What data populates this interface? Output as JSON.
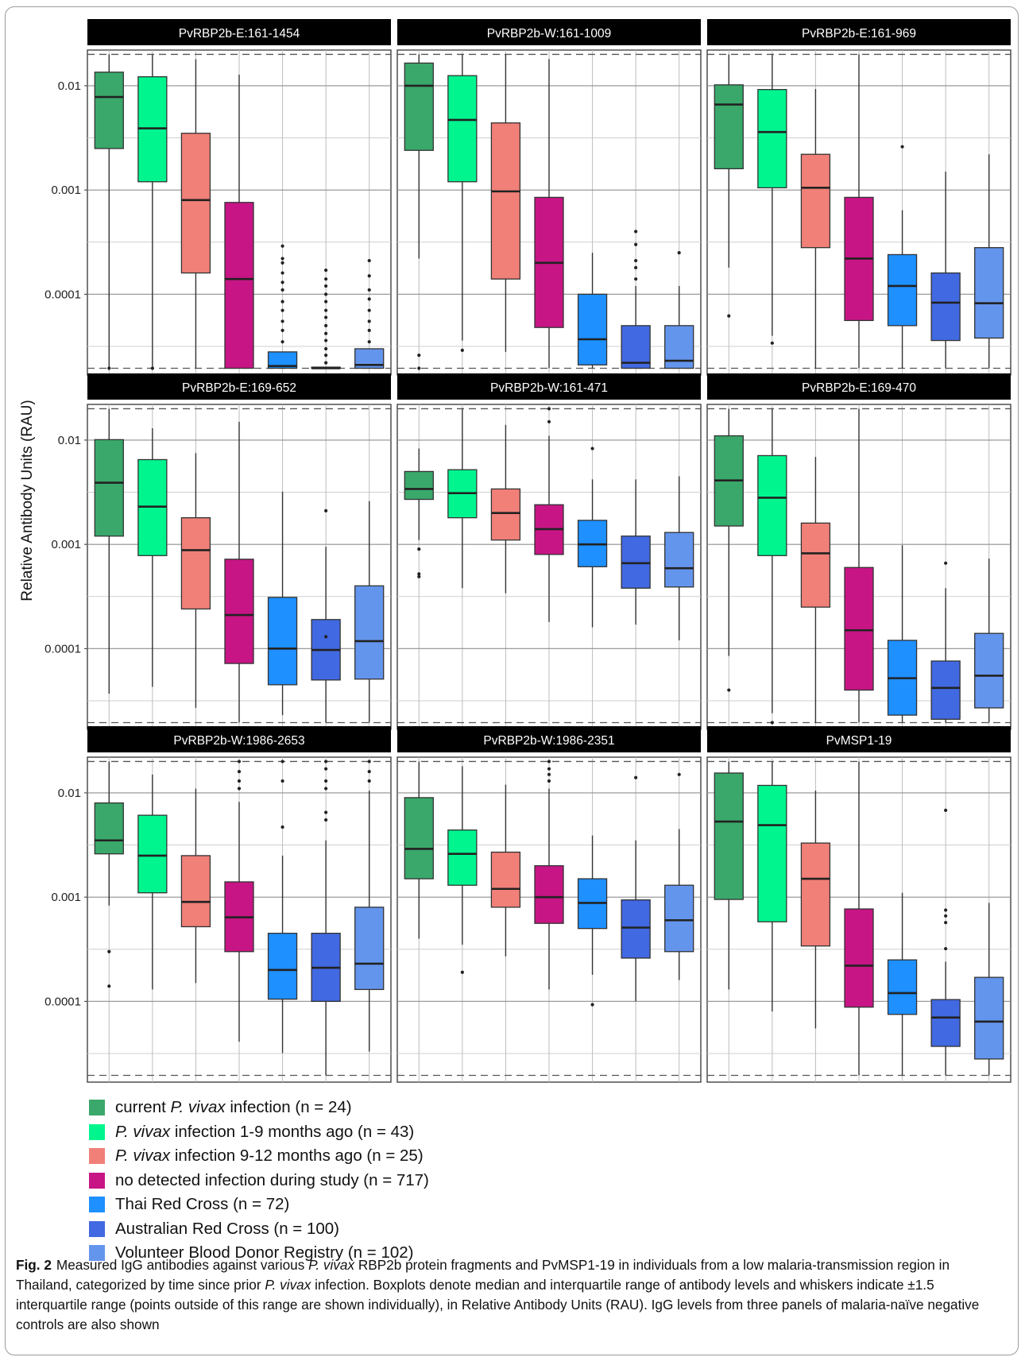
{
  "chart_data": {
    "type": "boxplot",
    "ylabel": "Relative Antibody Units (RAU)",
    "yscale": "log",
    "ylim": [
      1.68e-05,
      0.022
    ],
    "yticks": [
      0.0001,
      0.001,
      0.01
    ],
    "ytick_labels": [
      "0.0001",
      "0.001",
      "0.01"
    ],
    "ref_lines": [
      1.95e-05,
      0.02
    ],
    "groups": [
      {
        "prefix": "current ",
        "italic": "P. vivax",
        "suffix": " infection (n = 24)",
        "color": "#3aa86b"
      },
      {
        "prefix": "",
        "italic": "P. vivax",
        "suffix": " infection 1-9 months ago (n = 43)",
        "color": "#00f58f"
      },
      {
        "prefix": "",
        "italic": "P. vivax",
        "suffix": " infection 9-12 months ago (n = 25)",
        "color": "#f08078"
      },
      {
        "prefix": "no detected infection during study (n = 717)",
        "italic": "",
        "suffix": "",
        "color": "#c71585"
      },
      {
        "prefix": "Thai Red Cross (n = 72)",
        "italic": "",
        "suffix": "",
        "color": "#1e90ff"
      },
      {
        "prefix": "Australian Red Cross (n = 100)",
        "italic": "",
        "suffix": "",
        "color": "#4169e1"
      },
      {
        "prefix": "Volunteer Blood Donor Registry (n = 102)",
        "italic": "",
        "suffix": "",
        "color": "#6495ed"
      }
    ],
    "panels": [
      {
        "title": "PvRBP2b-E:161-1454",
        "boxes": [
          {
            "low": 1.95e-05,
            "q1": 0.0025,
            "median": 0.0078,
            "q3": 0.0135,
            "high": 0.02,
            "outliers": [
              1.95e-05
            ]
          },
          {
            "low": 1.95e-05,
            "q1": 0.0012,
            "median": 0.0039,
            "q3": 0.0122,
            "high": 0.02,
            "outliers": [
              1.95e-05
            ]
          },
          {
            "low": 1.95e-05,
            "q1": 0.00016,
            "median": 0.0008,
            "q3": 0.0035,
            "high": 0.018,
            "outliers": []
          },
          {
            "low": 1.95e-05,
            "q1": 1.95e-05,
            "median": 0.00014,
            "q3": 0.00076,
            "high": 0.0128,
            "outliers": []
          },
          {
            "low": 1.95e-05,
            "q1": 1.95e-05,
            "median": 2.05e-05,
            "q3": 2.8e-05,
            "high": 2.8e-05,
            "outliers": [
              3.5e-05,
              4.5e-05,
              5.5e-05,
              7e-05,
              8.5e-05,
              0.00011,
              0.00013,
              0.00016,
              0.0002,
              0.00022,
              0.00029
            ]
          },
          {
            "low": 1.95e-05,
            "q1": 1.95e-05,
            "median": 1.95e-05,
            "q3": 2e-05,
            "high": 2e-05,
            "outliers": [
              2.2e-05,
              2.6e-05,
              3e-05,
              3.6e-05,
              4.2e-05,
              5e-05,
              6e-05,
              7e-05,
              8.5e-05,
              0.0001,
              0.00012,
              0.00014,
              0.00017
            ]
          },
          {
            "low": 1.95e-05,
            "q1": 1.95e-05,
            "median": 2.1e-05,
            "q3": 3e-05,
            "high": 3e-05,
            "outliers": [
              3.5e-05,
              4.5e-05,
              5.5e-05,
              7e-05,
              9e-05,
              0.00011,
              0.00015,
              0.00021
            ]
          }
        ]
      },
      {
        "title": "PvRBP2b-W:161-1009",
        "boxes": [
          {
            "low": 0.00022,
            "q1": 0.0024,
            "median": 0.01,
            "q3": 0.0165,
            "high": 0.02,
            "outliers": [
              2.6e-05,
              1.95e-05
            ]
          },
          {
            "low": 3.6e-05,
            "q1": 0.0012,
            "median": 0.0047,
            "q3": 0.0125,
            "high": 0.02,
            "outliers": [
              2.9e-05
            ]
          },
          {
            "low": 2.8e-05,
            "q1": 0.00014,
            "median": 0.00097,
            "q3": 0.0044,
            "high": 0.02,
            "outliers": []
          },
          {
            "low": 1.95e-05,
            "q1": 4.8e-05,
            "median": 0.0002,
            "q3": 0.00085,
            "high": 0.018,
            "outliers": []
          },
          {
            "low": 1.95e-05,
            "q1": 2.1e-05,
            "median": 3.7e-05,
            "q3": 0.0001,
            "high": 0.00025,
            "outliers": []
          },
          {
            "low": 1.95e-05,
            "q1": 1.95e-05,
            "median": 2.2e-05,
            "q3": 5e-05,
            "high": 0.00012,
            "outliers": [
              0.00014,
              0.00018,
              0.00021,
              0.0003,
              0.0004
            ]
          },
          {
            "low": 1.95e-05,
            "q1": 1.95e-05,
            "median": 2.3e-05,
            "q3": 5e-05,
            "high": 0.00012,
            "outliers": [
              0.00025
            ]
          }
        ]
      },
      {
        "title": "PvRBP2b-E:161-969",
        "boxes": [
          {
            "low": 0.00018,
            "q1": 0.0016,
            "median": 0.0066,
            "q3": 0.0102,
            "high": 0.02,
            "outliers": [
              6.2e-05
            ]
          },
          {
            "low": 4e-05,
            "q1": 0.00105,
            "median": 0.0036,
            "q3": 0.0092,
            "high": 0.02,
            "outliers": [
              3.4e-05
            ]
          },
          {
            "low": 1.95e-05,
            "q1": 0.00028,
            "median": 0.00105,
            "q3": 0.0022,
            "high": 0.0093,
            "outliers": []
          },
          {
            "low": 1.95e-05,
            "q1": 5.6e-05,
            "median": 0.00022,
            "q3": 0.00085,
            "high": 0.02,
            "outliers": []
          },
          {
            "low": 1.95e-05,
            "q1": 5e-05,
            "median": 0.00012,
            "q3": 0.00024,
            "high": 0.00064,
            "outliers": [
              0.0026
            ]
          },
          {
            "low": 1.95e-05,
            "q1": 3.6e-05,
            "median": 8.3e-05,
            "q3": 0.00016,
            "high": 0.0015,
            "outliers": []
          },
          {
            "low": 1.95e-05,
            "q1": 3.8e-05,
            "median": 8.2e-05,
            "q3": 0.00028,
            "high": 0.0022,
            "outliers": []
          }
        ]
      },
      {
        "title": "PvRBP2b-E:169-652",
        "boxes": [
          {
            "low": 3.7e-05,
            "q1": 0.0012,
            "median": 0.0039,
            "q3": 0.0101,
            "high": 0.02,
            "outliers": []
          },
          {
            "low": 4.3e-05,
            "q1": 0.00078,
            "median": 0.0023,
            "q3": 0.0065,
            "high": 0.013,
            "outliers": []
          },
          {
            "low": 2.7e-05,
            "q1": 0.00024,
            "median": 0.00088,
            "q3": 0.0018,
            "high": 0.0075,
            "outliers": []
          },
          {
            "low": 1.95e-05,
            "q1": 7.2e-05,
            "median": 0.00021,
            "q3": 0.00072,
            "high": 0.015,
            "outliers": []
          },
          {
            "low": 2.3e-05,
            "q1": 4.5e-05,
            "median": 0.0001,
            "q3": 0.00031,
            "high": 0.0032,
            "outliers": []
          },
          {
            "low": 1.95e-05,
            "q1": 5e-05,
            "median": 9.7e-05,
            "q3": 0.00019,
            "high": 0.00095,
            "outliers": [
              0.00013,
              0.0021
            ]
          },
          {
            "low": 1.95e-05,
            "q1": 5.1e-05,
            "median": 0.000118,
            "q3": 0.0004,
            "high": 0.0026,
            "outliers": []
          }
        ]
      },
      {
        "title": "PvRBP2b-W:161-471",
        "boxes": [
          {
            "low": 0.0011,
            "q1": 0.0027,
            "median": 0.0034,
            "q3": 0.005,
            "high": 0.0083,
            "outliers": [
              0.0009,
              0.00052,
              0.00049
            ]
          },
          {
            "low": 0.00038,
            "q1": 0.0018,
            "median": 0.0031,
            "q3": 0.0052,
            "high": 0.02,
            "outliers": []
          },
          {
            "low": 0.00034,
            "q1": 0.0011,
            "median": 0.002,
            "q3": 0.0034,
            "high": 0.014,
            "outliers": []
          },
          {
            "low": 0.00018,
            "q1": 0.0008,
            "median": 0.0014,
            "q3": 0.0024,
            "high": 0.011,
            "outliers": [
              0.015,
              0.02
            ]
          },
          {
            "low": 0.00016,
            "q1": 0.00061,
            "median": 0.001,
            "q3": 0.0017,
            "high": 0.0042,
            "outliers": [
              0.0083
            ]
          },
          {
            "low": 0.00017,
            "q1": 0.00038,
            "median": 0.00066,
            "q3": 0.0012,
            "high": 0.0042,
            "outliers": []
          },
          {
            "low": 0.00012,
            "q1": 0.00039,
            "median": 0.00059,
            "q3": 0.0013,
            "high": 0.0045,
            "outliers": []
          }
        ]
      },
      {
        "title": "PvRBP2b-E:169-470",
        "boxes": [
          {
            "low": 8.5e-05,
            "q1": 0.0015,
            "median": 0.0041,
            "q3": 0.011,
            "high": 0.02,
            "outliers": [
              4e-05
            ]
          },
          {
            "low": 2.4e-05,
            "q1": 0.00078,
            "median": 0.0028,
            "q3": 0.0071,
            "high": 0.02,
            "outliers": [
              1.95e-05
            ]
          },
          {
            "low": 1.95e-05,
            "q1": 0.00025,
            "median": 0.00082,
            "q3": 0.0016,
            "high": 0.0069,
            "outliers": []
          },
          {
            "low": 1.95e-05,
            "q1": 4e-05,
            "median": 0.00015,
            "q3": 0.0006,
            "high": 0.02,
            "outliers": []
          },
          {
            "low": 1.95e-05,
            "q1": 2.3e-05,
            "median": 5.2e-05,
            "q3": 0.00012,
            "high": 0.00098,
            "outliers": []
          },
          {
            "low": 1.95e-05,
            "q1": 2.1e-05,
            "median": 4.2e-05,
            "q3": 7.6e-05,
            "high": 0.00038,
            "outliers": [
              0.00066
            ]
          },
          {
            "low": 1.95e-05,
            "q1": 2.7e-05,
            "median": 5.5e-05,
            "q3": 0.00014,
            "high": 0.00073,
            "outliers": []
          }
        ]
      },
      {
        "title": "PvRBP2b-W:1986-2653",
        "boxes": [
          {
            "low": 0.00083,
            "q1": 0.0026,
            "median": 0.0035,
            "q3": 0.008,
            "high": 0.02,
            "outliers": [
              0.0003,
              0.00014
            ]
          },
          {
            "low": 0.00013,
            "q1": 0.0011,
            "median": 0.0025,
            "q3": 0.0061,
            "high": 0.015,
            "outliers": []
          },
          {
            "low": 0.00015,
            "q1": 0.00052,
            "median": 0.0009,
            "q3": 0.0025,
            "high": 0.011,
            "outliers": []
          },
          {
            "low": 4.1e-05,
            "q1": 0.0003,
            "median": 0.00064,
            "q3": 0.0014,
            "high": 0.0082,
            "outliers": [
              0.011,
              0.013,
              0.016,
              0.02
            ]
          },
          {
            "low": 3.2e-05,
            "q1": 0.000105,
            "median": 0.0002,
            "q3": 0.00045,
            "high": 0.0025,
            "outliers": [
              0.0047,
              0.013,
              0.02
            ]
          },
          {
            "low": 1.95e-05,
            "q1": 0.0001,
            "median": 0.00021,
            "q3": 0.00045,
            "high": 0.0035,
            "outliers": [
              0.0055,
              0.0065,
              0.011,
              0.013,
              0.017,
              0.02
            ]
          },
          {
            "low": 3.3e-05,
            "q1": 0.00013,
            "median": 0.00023,
            "q3": 0.0008,
            "high": 0.0105,
            "outliers": [
              0.013,
              0.016,
              0.02
            ]
          }
        ]
      },
      {
        "title": "PvRBP2b-W:1986-2351",
        "boxes": [
          {
            "low": 0.0004,
            "q1": 0.0015,
            "median": 0.0029,
            "q3": 0.009,
            "high": 0.02,
            "outliers": []
          },
          {
            "low": 0.00035,
            "q1": 0.0013,
            "median": 0.0026,
            "q3": 0.0044,
            "high": 0.018,
            "outliers": [
              0.00019
            ]
          },
          {
            "low": 0.00027,
            "q1": 0.0008,
            "median": 0.0012,
            "q3": 0.0027,
            "high": 0.012,
            "outliers": []
          },
          {
            "low": 0.00013,
            "q1": 0.00056,
            "median": 0.001,
            "q3": 0.002,
            "high": 0.011,
            "outliers": [
              0.013,
              0.015,
              0.017,
              0.02
            ]
          },
          {
            "low": 0.00018,
            "q1": 0.0005,
            "median": 0.00088,
            "q3": 0.0015,
            "high": 0.0039,
            "outliers": [
              9.3e-05
            ]
          },
          {
            "low": 0.0001,
            "q1": 0.00026,
            "median": 0.00051,
            "q3": 0.00094,
            "high": 0.0035,
            "outliers": [
              0.014
            ]
          },
          {
            "low": 0.00016,
            "q1": 0.0003,
            "median": 0.0006,
            "q3": 0.0013,
            "high": 0.0045,
            "outliers": [
              0.015
            ]
          }
        ]
      },
      {
        "title": "PvMSP1-19",
        "boxes": [
          {
            "low": 0.00013,
            "q1": 0.00095,
            "median": 0.0053,
            "q3": 0.0155,
            "high": 0.02,
            "outliers": []
          },
          {
            "low": 8e-05,
            "q1": 0.00058,
            "median": 0.0049,
            "q3": 0.0118,
            "high": 0.02,
            "outliers": []
          },
          {
            "low": 5.5e-05,
            "q1": 0.00034,
            "median": 0.0015,
            "q3": 0.0033,
            "high": 0.0105,
            "outliers": []
          },
          {
            "low": 1.95e-05,
            "q1": 8.8e-05,
            "median": 0.00022,
            "q3": 0.00077,
            "high": 0.02,
            "outliers": []
          },
          {
            "low": 1.95e-05,
            "q1": 7.5e-05,
            "median": 0.00012,
            "q3": 0.00025,
            "high": 0.0011,
            "outliers": []
          },
          {
            "low": 1.95e-05,
            "q1": 3.7e-05,
            "median": 7e-05,
            "q3": 0.000104,
            "high": 0.00024,
            "outliers": [
              0.00032,
              0.00057,
              0.00066,
              0.00075,
              0.0068
            ]
          },
          {
            "low": 1.95e-05,
            "q1": 2.8e-05,
            "median": 6.4e-05,
            "q3": 0.00017,
            "high": 0.00088,
            "outliers": []
          }
        ]
      }
    ]
  },
  "caption": {
    "fig_label": "Fig. 2",
    "text_1": "Measured IgG antibodies against various ",
    "italic_1": "P. vivax",
    "text_2": " RBP2b protein fragments and PvMSP1-19 in individuals from a low malaria-transmission region in Thailand, categorized by time since prior ",
    "italic_2": "P. vivax",
    "text_3": " infection. Boxplots denote median and interquartile range of antibody levels and whiskers indicate ±1.5 interquartile range (points outside of this range are shown individually), in Relative Antibody Units (RAU). IgG levels from three panels of malaria-naïve negative controls are also shown"
  }
}
